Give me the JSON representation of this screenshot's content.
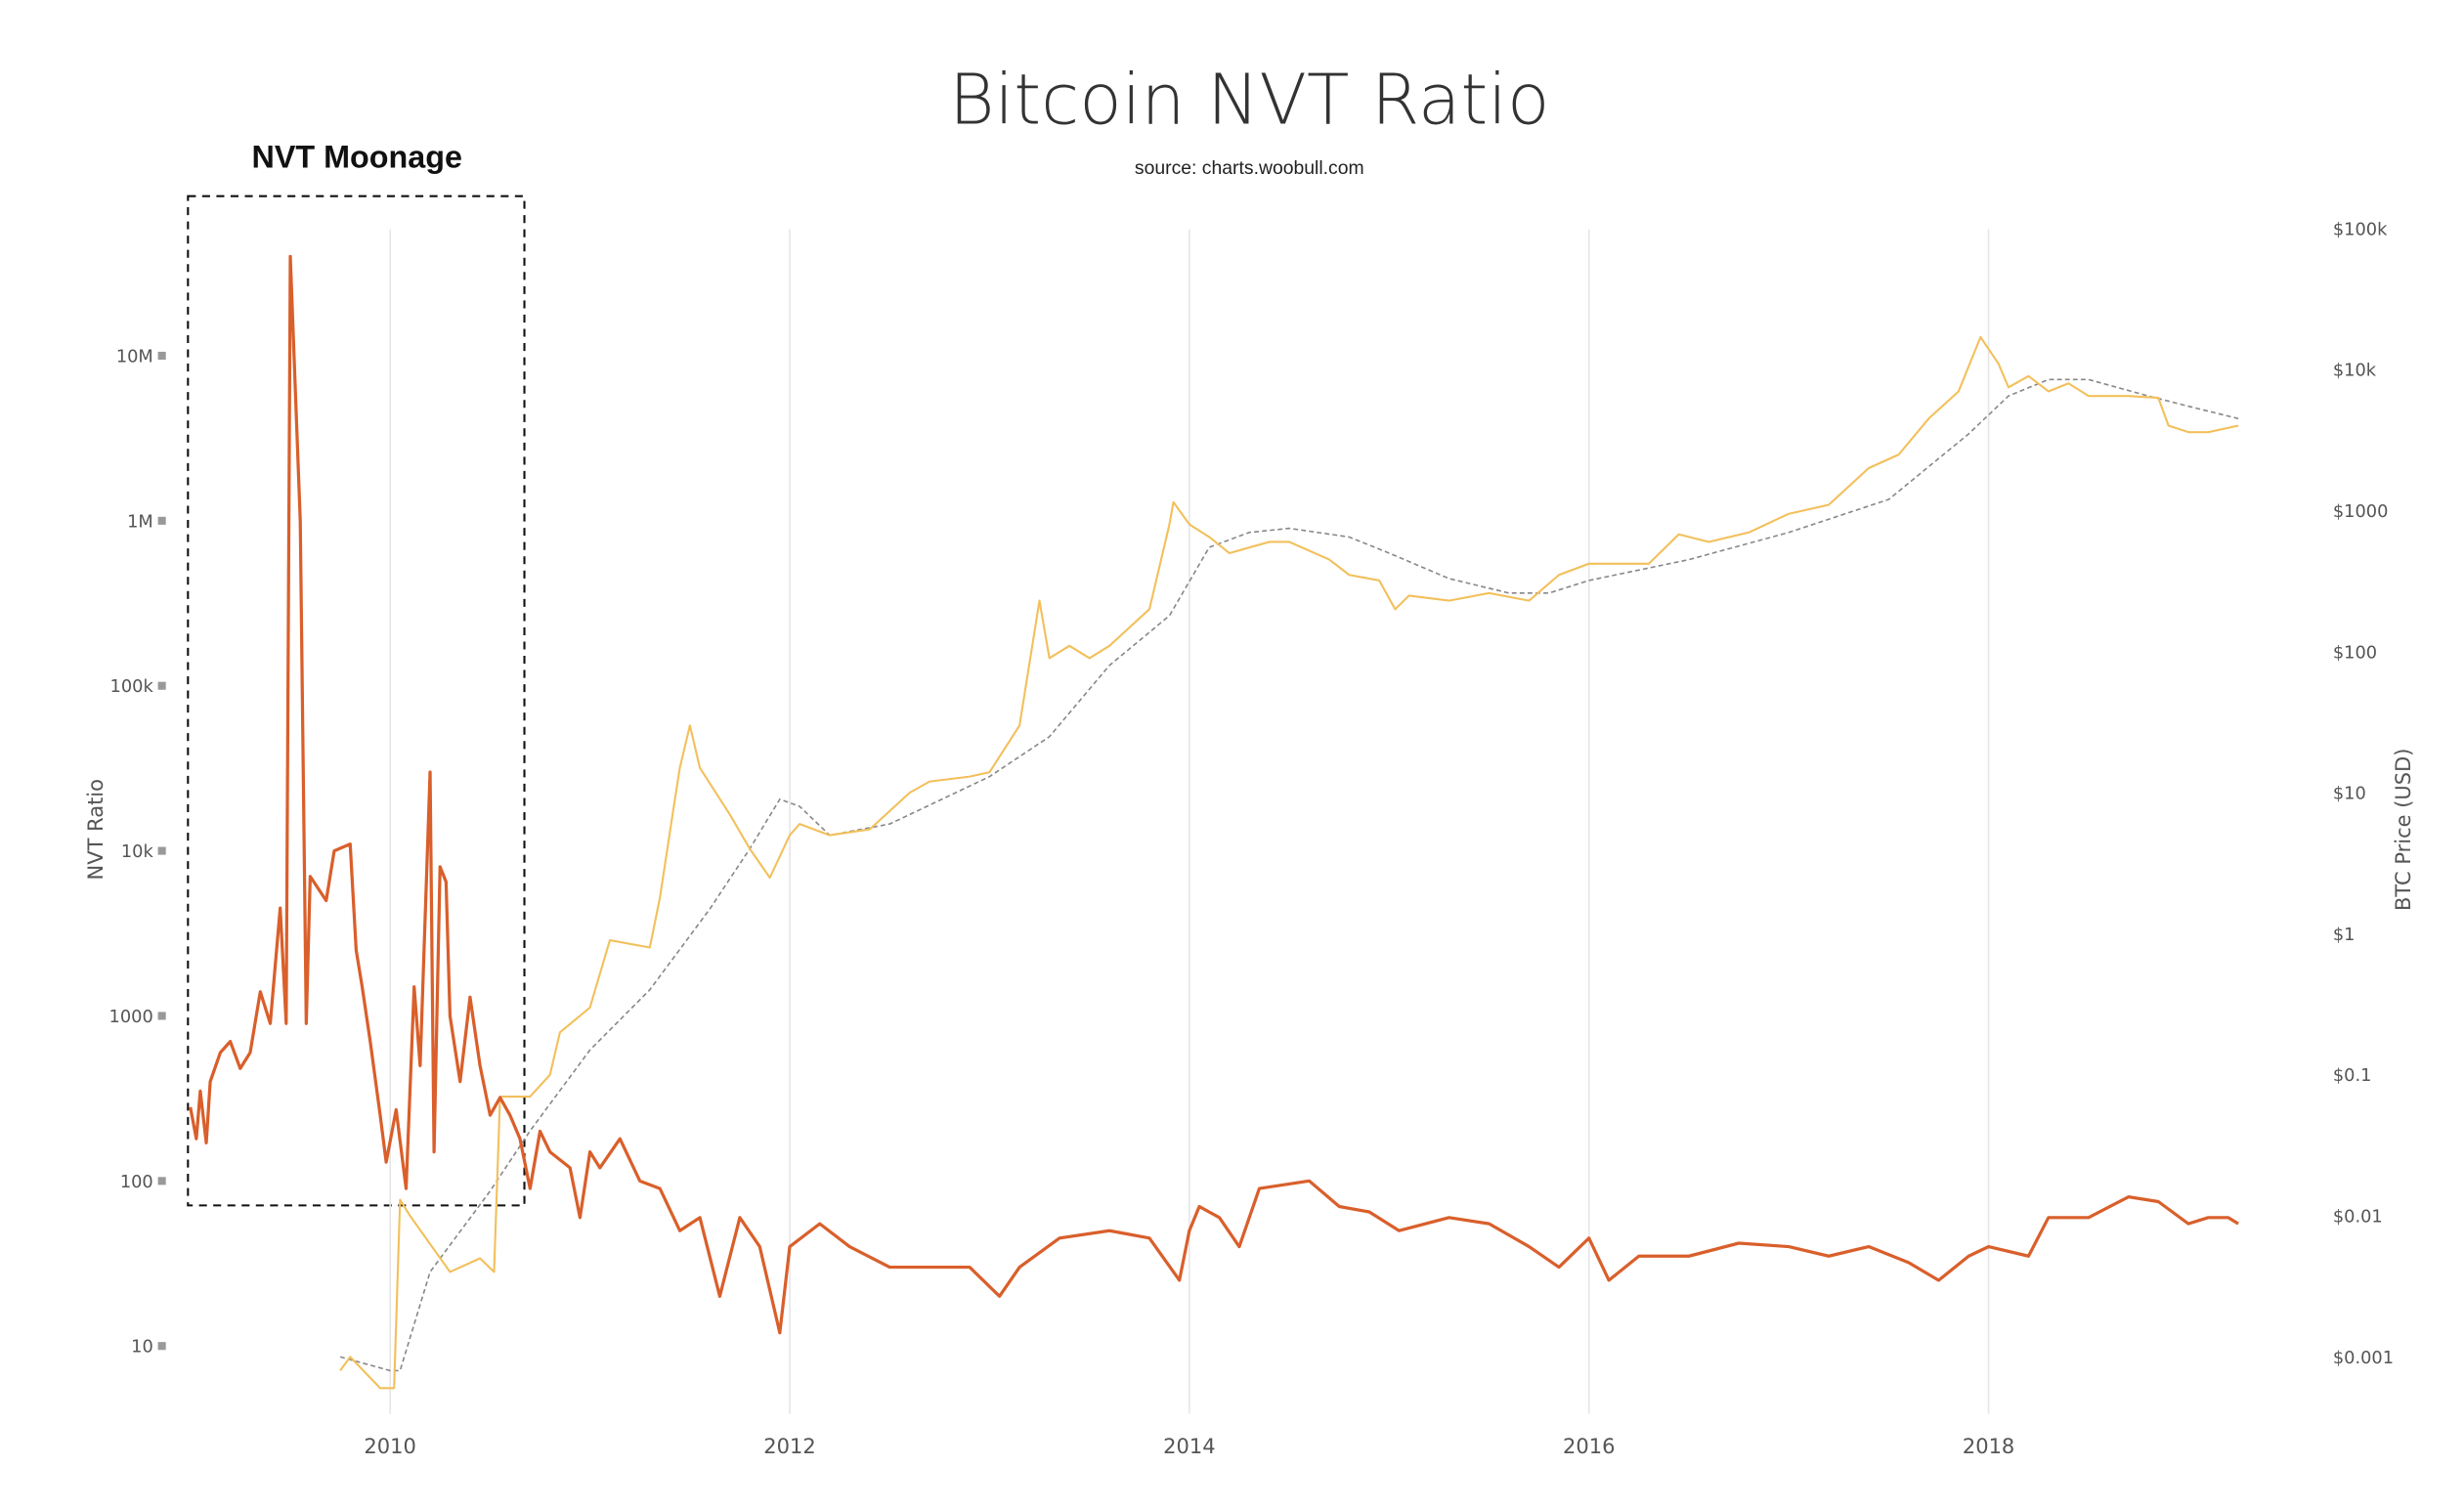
{
  "chart_data": {
    "type": "line",
    "title": "Bitcoin NVT Ratio",
    "subtitle": "source: charts.woobull.com",
    "annotation": "NVT Moonage",
    "ylabel_left": "NVT Ratio",
    "ylabel_right": "BTC Price (USD)",
    "x_scale": "date",
    "y_left_scale": "log",
    "y_right_scale": "log",
    "x_ticks": [
      "2010",
      "2012",
      "2014",
      "2016",
      "2018"
    ],
    "y_left_ticks": [
      "10M",
      "1M",
      "100k",
      "10k",
      "1000",
      "100",
      "10"
    ],
    "y_right_ticks": [
      "$100k",
      "$10k",
      "$1000",
      "$100",
      "$10",
      "$1",
      "$0.1",
      "$0.01",
      "$0.001"
    ],
    "ylim_left": [
      3,
      100000000
    ],
    "ylim_right": [
      0.0003,
      100000
    ],
    "grid": "vertical only",
    "colors": {
      "nvt": "#d95f2b",
      "price": "#f2c05c",
      "price_ma": "#888888"
    },
    "series": [
      {
        "key": "nvt",
        "axis": "left",
        "style": "solid",
        "points": [
          [
            2009.0,
            280
          ],
          [
            2009.03,
            180
          ],
          [
            2009.05,
            350
          ],
          [
            2009.08,
            170
          ],
          [
            2009.1,
            400
          ],
          [
            2009.15,
            600
          ],
          [
            2009.2,
            700
          ],
          [
            2009.25,
            480
          ],
          [
            2009.3,
            600
          ],
          [
            2009.35,
            1400
          ],
          [
            2009.4,
            900
          ],
          [
            2009.45,
            4500
          ],
          [
            2009.48,
            900
          ],
          [
            2009.5,
            40000000
          ],
          [
            2009.55,
            1000000
          ],
          [
            2009.58,
            900
          ],
          [
            2009.6,
            7000
          ],
          [
            2009.68,
            5000
          ],
          [
            2009.72,
            10000
          ],
          [
            2009.8,
            11000
          ],
          [
            2009.83,
            2500
          ],
          [
            2009.86,
            1500
          ],
          [
            2009.9,
            700
          ],
          [
            2009.95,
            250
          ],
          [
            2009.98,
            130
          ],
          [
            2010.03,
            270
          ],
          [
            2010.08,
            90
          ],
          [
            2010.12,
            1500
          ],
          [
            2010.15,
            500
          ],
          [
            2010.2,
            30000
          ],
          [
            2010.22,
            150
          ],
          [
            2010.25,
            8000
          ],
          [
            2010.28,
            6500
          ],
          [
            2010.3,
            1000
          ],
          [
            2010.35,
            400
          ],
          [
            2010.4,
            1300
          ],
          [
            2010.45,
            500
          ],
          [
            2010.5,
            250
          ],
          [
            2010.55,
            320
          ],
          [
            2010.6,
            250
          ],
          [
            2010.65,
            180
          ],
          [
            2010.7,
            90
          ],
          [
            2010.75,
            200
          ],
          [
            2010.8,
            150
          ],
          [
            2010.9,
            120
          ],
          [
            2010.95,
            60
          ],
          [
            2011.0,
            150
          ],
          [
            2011.05,
            120
          ],
          [
            2011.15,
            180
          ],
          [
            2011.25,
            100
          ],
          [
            2011.35,
            90
          ],
          [
            2011.45,
            50
          ],
          [
            2011.55,
            60
          ],
          [
            2011.65,
            20
          ],
          [
            2011.75,
            60
          ],
          [
            2011.85,
            40
          ],
          [
            2011.95,
            12
          ],
          [
            2012.0,
            40
          ],
          [
            2012.15,
            55
          ],
          [
            2012.3,
            40
          ],
          [
            2012.5,
            30
          ],
          [
            2012.7,
            30
          ],
          [
            2012.9,
            30
          ],
          [
            2013.05,
            20
          ],
          [
            2013.15,
            30
          ],
          [
            2013.35,
            45
          ],
          [
            2013.6,
            50
          ],
          [
            2013.8,
            45
          ],
          [
            2013.95,
            25
          ],
          [
            2014.0,
            50
          ],
          [
            2014.05,
            70
          ],
          [
            2014.15,
            60
          ],
          [
            2014.25,
            40
          ],
          [
            2014.35,
            90
          ],
          [
            2014.6,
            100
          ],
          [
            2014.75,
            70
          ],
          [
            2014.9,
            65
          ],
          [
            2015.05,
            50
          ],
          [
            2015.3,
            60
          ],
          [
            2015.5,
            55
          ],
          [
            2015.7,
            40
          ],
          [
            2015.85,
            30
          ],
          [
            2016.0,
            45
          ],
          [
            2016.1,
            25
          ],
          [
            2016.25,
            35
          ],
          [
            2016.5,
            35
          ],
          [
            2016.75,
            42
          ],
          [
            2017.0,
            40
          ],
          [
            2017.2,
            35
          ],
          [
            2017.4,
            40
          ],
          [
            2017.6,
            32
          ],
          [
            2017.75,
            25
          ],
          [
            2017.9,
            35
          ],
          [
            2018.0,
            40
          ],
          [
            2018.2,
            35
          ],
          [
            2018.3,
            60
          ],
          [
            2018.5,
            60
          ],
          [
            2018.7,
            80
          ],
          [
            2018.85,
            75
          ],
          [
            2019.0,
            55
          ],
          [
            2019.1,
            60
          ],
          [
            2019.2,
            60
          ],
          [
            2019.25,
            55
          ]
        ]
      },
      {
        "key": "price",
        "axis": "right",
        "style": "solid",
        "points": [
          [
            2009.75,
            0.0008
          ],
          [
            2009.8,
            0.001
          ],
          [
            2009.95,
            0.0006
          ],
          [
            2010.02,
            0.0006
          ],
          [
            2010.05,
            0.013
          ],
          [
            2010.1,
            0.01
          ],
          [
            2010.3,
            0.004
          ],
          [
            2010.45,
            0.005
          ],
          [
            2010.52,
            0.004
          ],
          [
            2010.55,
            0.07
          ],
          [
            2010.7,
            0.07
          ],
          [
            2010.8,
            0.1
          ],
          [
            2010.85,
            0.2
          ],
          [
            2011.0,
            0.3
          ],
          [
            2011.1,
            0.9
          ],
          [
            2011.3,
            0.8
          ],
          [
            2011.35,
            1.8
          ],
          [
            2011.42,
            8
          ],
          [
            2011.45,
            15
          ],
          [
            2011.5,
            30
          ],
          [
            2011.55,
            15
          ],
          [
            2011.7,
            7
          ],
          [
            2011.8,
            4
          ],
          [
            2011.9,
            2.5
          ],
          [
            2012.0,
            5
          ],
          [
            2012.05,
            6
          ],
          [
            2012.2,
            5
          ],
          [
            2012.4,
            5.5
          ],
          [
            2012.6,
            10
          ],
          [
            2012.7,
            12
          ],
          [
            2012.9,
            13
          ],
          [
            2013.0,
            14
          ],
          [
            2013.15,
            30
          ],
          [
            2013.25,
            230
          ],
          [
            2013.3,
            90
          ],
          [
            2013.4,
            110
          ],
          [
            2013.5,
            90
          ],
          [
            2013.6,
            110
          ],
          [
            2013.8,
            200
          ],
          [
            2013.9,
            800
          ],
          [
            2013.92,
            1150
          ],
          [
            2014.0,
            800
          ],
          [
            2014.1,
            650
          ],
          [
            2014.2,
            500
          ],
          [
            2014.4,
            600
          ],
          [
            2014.5,
            600
          ],
          [
            2014.7,
            450
          ],
          [
            2014.8,
            350
          ],
          [
            2014.95,
            320
          ],
          [
            2015.03,
            200
          ],
          [
            2015.1,
            250
          ],
          [
            2015.3,
            230
          ],
          [
            2015.5,
            260
          ],
          [
            2015.7,
            230
          ],
          [
            2015.85,
            350
          ],
          [
            2016.0,
            420
          ],
          [
            2016.3,
            420
          ],
          [
            2016.45,
            680
          ],
          [
            2016.6,
            600
          ],
          [
            2016.8,
            700
          ],
          [
            2017.0,
            950
          ],
          [
            2017.2,
            1100
          ],
          [
            2017.4,
            2000
          ],
          [
            2017.55,
            2500
          ],
          [
            2017.7,
            4500
          ],
          [
            2017.85,
            7000
          ],
          [
            2017.96,
            17000
          ],
          [
            2018.05,
            11000
          ],
          [
            2018.1,
            7500
          ],
          [
            2018.2,
            9000
          ],
          [
            2018.3,
            7000
          ],
          [
            2018.4,
            8000
          ],
          [
            2018.5,
            6500
          ],
          [
            2018.7,
            6500
          ],
          [
            2018.85,
            6300
          ],
          [
            2018.9,
            4000
          ],
          [
            2019.0,
            3600
          ],
          [
            2019.1,
            3600
          ],
          [
            2019.25,
            4000
          ]
        ]
      },
      {
        "key": "price_ma",
        "axis": "right",
        "style": "dashed",
        "points": [
          [
            2009.75,
            0.001
          ],
          [
            2010.0,
            0.0008
          ],
          [
            2010.05,
            0.0008
          ],
          [
            2010.2,
            0.004
          ],
          [
            2010.5,
            0.015
          ],
          [
            2010.7,
            0.04
          ],
          [
            2011.0,
            0.15
          ],
          [
            2011.3,
            0.4
          ],
          [
            2011.6,
            1.5
          ],
          [
            2011.8,
            4
          ],
          [
            2011.95,
            9
          ],
          [
            2012.05,
            8
          ],
          [
            2012.2,
            5
          ],
          [
            2012.5,
            6
          ],
          [
            2013.0,
            13
          ],
          [
            2013.3,
            25
          ],
          [
            2013.6,
            80
          ],
          [
            2013.9,
            180
          ],
          [
            2014.1,
            550
          ],
          [
            2014.3,
            700
          ],
          [
            2014.5,
            750
          ],
          [
            2014.8,
            650
          ],
          [
            2015.0,
            500
          ],
          [
            2015.3,
            330
          ],
          [
            2015.6,
            260
          ],
          [
            2015.8,
            260
          ],
          [
            2016.0,
            320
          ],
          [
            2016.5,
            450
          ],
          [
            2017.0,
            700
          ],
          [
            2017.5,
            1200
          ],
          [
            2017.9,
            3500
          ],
          [
            2018.1,
            6500
          ],
          [
            2018.3,
            8500
          ],
          [
            2018.5,
            8500
          ],
          [
            2018.8,
            6500
          ],
          [
            2019.0,
            5500
          ],
          [
            2019.25,
            4500
          ]
        ]
      }
    ]
  }
}
